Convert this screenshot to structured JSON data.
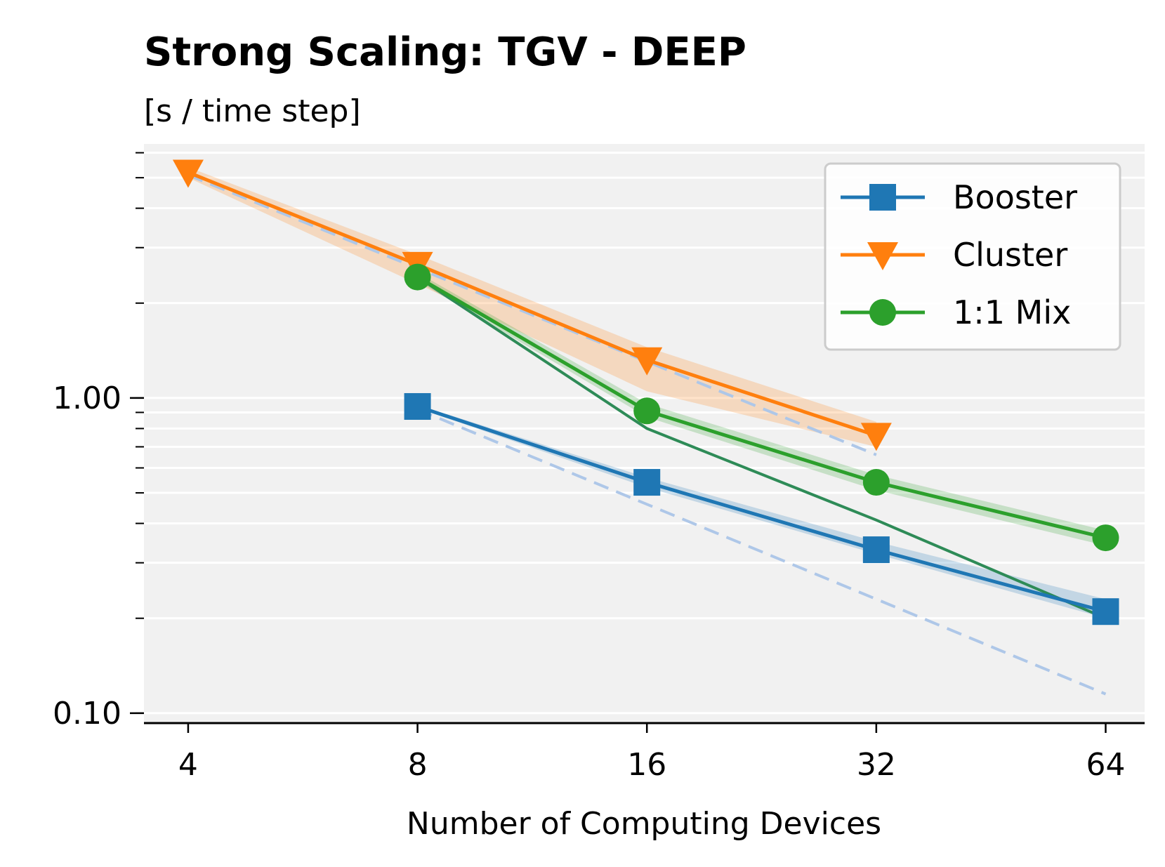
{
  "chart_data": {
    "type": "line",
    "title": "Strong Scaling: TGV - DEEP",
    "subtitle": "[s / time step]",
    "xlabel": "Number of Computing Devices",
    "ylabel": "",
    "x_scale": "log2",
    "y_scale": "log",
    "x_ticks": [
      4,
      8,
      16,
      32,
      64
    ],
    "x_tick_labels": [
      "4",
      "8",
      "16",
      "32",
      "64"
    ],
    "y_ticks": [
      0.1,
      1.0
    ],
    "y_tick_labels": [
      "0.10",
      "1.00"
    ],
    "xlim": [
      3.5,
      72
    ],
    "ylim": [
      0.093,
      6.4
    ],
    "grid": "horizontal",
    "legend_position": "top-right",
    "series": [
      {
        "name": "Booster",
        "color": "#1f77b4",
        "marker": "square",
        "x": [
          8,
          16,
          32,
          64
        ],
        "y": [
          0.94,
          0.54,
          0.33,
          0.21
        ],
        "band_low": [
          0.93,
          0.52,
          0.32,
          0.2
        ],
        "band_high": [
          0.95,
          0.56,
          0.35,
          0.23
        ]
      },
      {
        "name": "Cluster",
        "color": "#ff7f0e",
        "marker": "triangle-down",
        "x": [
          4,
          8,
          16,
          32
        ],
        "y": [
          5.2,
          2.65,
          1.32,
          0.76
        ],
        "band_low": [
          5.0,
          2.3,
          1.05,
          0.7
        ],
        "band_high": [
          5.4,
          2.85,
          1.45,
          0.84
        ]
      },
      {
        "name": "1:1 Mix",
        "color": "#2ca02c",
        "marker": "circle",
        "x": [
          8,
          16,
          32,
          64
        ],
        "y": [
          2.42,
          0.91,
          0.54,
          0.36
        ],
        "band_low": [
          2.35,
          0.87,
          0.51,
          0.34
        ],
        "band_high": [
          2.5,
          0.96,
          0.57,
          0.38
        ]
      }
    ],
    "reference_lines": [
      {
        "style": "dashed",
        "color": "#aec7e8",
        "x": [
          4,
          32
        ],
        "y": [
          5.1,
          0.66
        ]
      },
      {
        "style": "dashed",
        "color": "#aec7e8",
        "x": [
          8,
          64
        ],
        "y": [
          0.92,
          0.115
        ]
      },
      {
        "style": "solid",
        "color": "#2e8b57",
        "x": [
          8,
          16,
          32,
          64
        ],
        "y": [
          2.42,
          0.8,
          0.41,
          0.2
        ]
      }
    ]
  }
}
